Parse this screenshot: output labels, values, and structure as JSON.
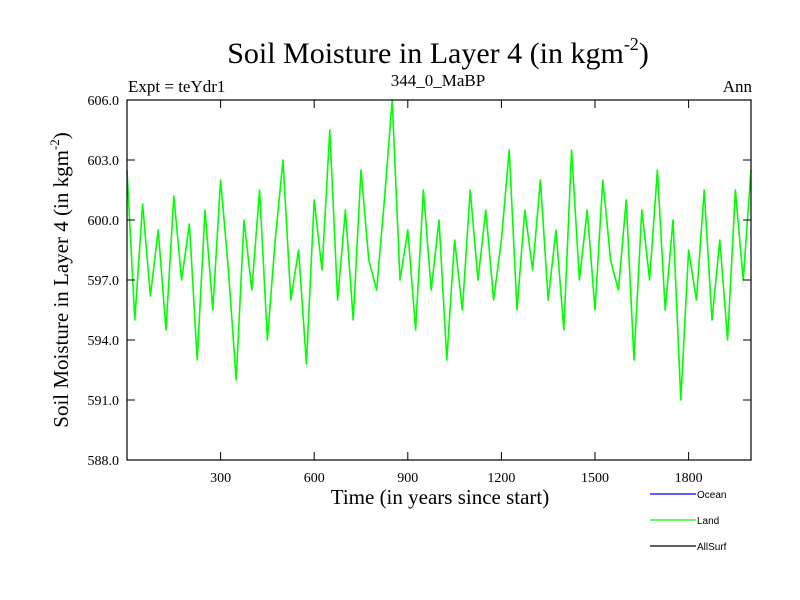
{
  "chart_data": {
    "type": "line",
    "title": "Soil Moisture in Layer 4 (in kgm",
    "title_sup": "-2",
    "title_end": ")",
    "subtitle_left": "Expt = teYdr1",
    "subtitle_center": "344_0_MaBP",
    "subtitle_right": "Ann",
    "xlabel": "Time (in years since start)",
    "ylabel": "Soil Moisture in Layer 4 (in kgm",
    "ylabel_sup": "-2",
    "ylabel_end": ")",
    "xlim": [
      0,
      2000
    ],
    "ylim": [
      588.0,
      606.0
    ],
    "x_ticks": [
      300,
      600,
      900,
      1200,
      1500,
      1800
    ],
    "x_tick_labels": [
      "300",
      "600",
      "900",
      "1200",
      "1500",
      "1800"
    ],
    "y_ticks": [
      588.0,
      591.0,
      594.0,
      597.0,
      600.0,
      603.0,
      606.0
    ],
    "y_tick_labels": [
      "588.0",
      "591.0",
      "594.0",
      "597.0",
      "600.0",
      "603.0",
      "606.0"
    ],
    "legend_position": "bottom-right",
    "legend": [
      {
        "name": "Ocean",
        "color": "#0000ff"
      },
      {
        "name": "Land",
        "color": "#00ff00"
      },
      {
        "name": "AllSurf",
        "color": "#000000"
      }
    ],
    "series": [
      {
        "name": "Land",
        "color": "#00ff00",
        "x": [
          0,
          25,
          50,
          75,
          100,
          125,
          150,
          175,
          200,
          225,
          250,
          275,
          300,
          325,
          350,
          375,
          400,
          425,
          450,
          475,
          500,
          525,
          550,
          575,
          600,
          625,
          650,
          675,
          700,
          725,
          750,
          775,
          800,
          825,
          850,
          875,
          900,
          925,
          950,
          975,
          1000,
          1025,
          1050,
          1075,
          1100,
          1125,
          1150,
          1175,
          1200,
          1225,
          1250,
          1275,
          1300,
          1325,
          1350,
          1375,
          1400,
          1425,
          1450,
          1475,
          1500,
          1525,
          1550,
          1575,
          1600,
          1625,
          1650,
          1675,
          1700,
          1725,
          1750,
          1775,
          1800,
          1825,
          1850,
          1875,
          1900,
          1925,
          1950,
          1975,
          2000
        ],
        "y": [
          602.5,
          595.0,
          600.8,
          596.2,
          599.5,
          594.5,
          601.2,
          597.0,
          599.8,
          593.0,
          600.5,
          595.5,
          602.0,
          597.5,
          592.0,
          600.0,
          596.5,
          601.5,
          594.0,
          599.0,
          603.0,
          596.0,
          598.5,
          592.8,
          601.0,
          597.5,
          604.5,
          596.0,
          600.5,
          595.0,
          602.5,
          598.0,
          596.5,
          601.0,
          606.0,
          597.0,
          599.5,
          594.5,
          601.5,
          596.5,
          600.0,
          593.0,
          599.0,
          595.5,
          601.5,
          597.0,
          600.5,
          596.0,
          599.0,
          603.5,
          595.5,
          600.5,
          597.5,
          602.0,
          596.0,
          599.5,
          594.5,
          603.5,
          597.0,
          600.5,
          595.5,
          602.0,
          598.0,
          596.5,
          601.0,
          593.0,
          600.5,
          597.0,
          602.5,
          595.5,
          600.0,
          591.0,
          598.5,
          596.0,
          601.5,
          595.0,
          599.0,
          594.0,
          601.5,
          597.0,
          602.5
        ]
      }
    ]
  }
}
